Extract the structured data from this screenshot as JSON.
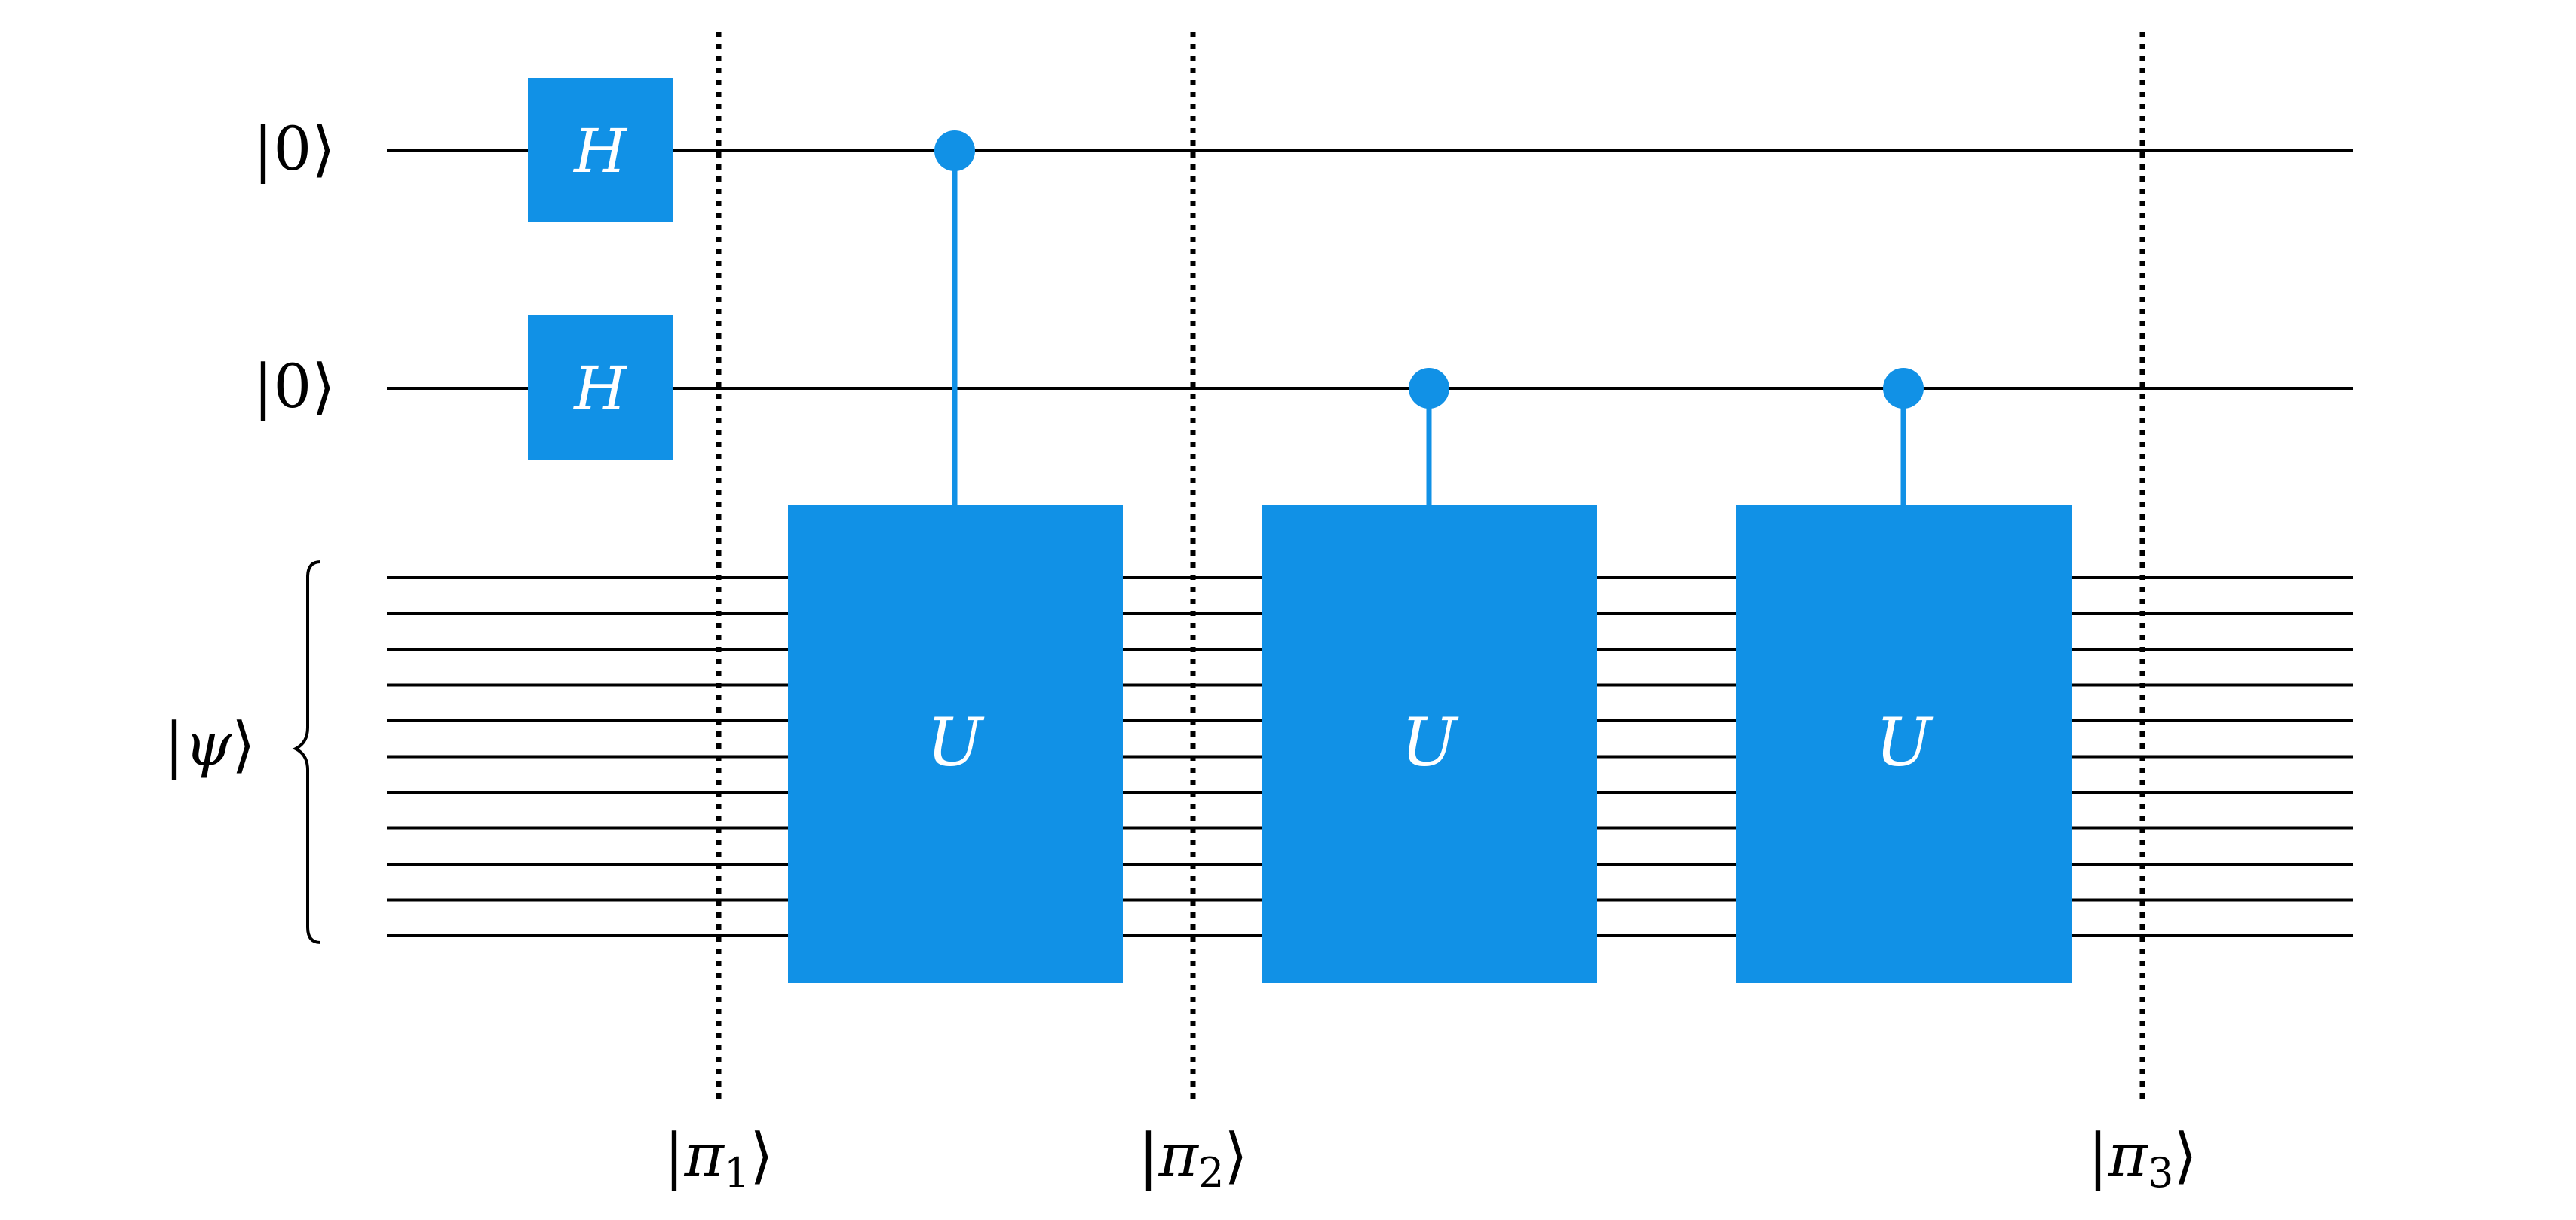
{
  "colors": {
    "gate": "#1191e6",
    "wire": "#000000",
    "gate_text": "#ffffff",
    "background": "#ffffff"
  },
  "qubits": [
    {
      "label": "|0⟩"
    },
    {
      "label": "|0⟩"
    }
  ],
  "register": {
    "label_prefix": "|",
    "label_symbol": "ψ",
    "label_suffix": "⟩",
    "wire_count": 11
  },
  "hadamard_gates": [
    {
      "label": "H",
      "qubit": 0
    },
    {
      "label": "H",
      "qubit": 1
    }
  ],
  "controlled_gates": [
    {
      "label": "U",
      "control_qubit": 0
    },
    {
      "label": "U",
      "control_qubit": 1
    },
    {
      "label": "U",
      "control_qubit": 1
    }
  ],
  "barriers": [
    {
      "label_prefix": "|",
      "symbol": "π",
      "subscript": "1",
      "label_suffix": "⟩"
    },
    {
      "label_prefix": "|",
      "symbol": "π",
      "subscript": "2",
      "label_suffix": "⟩"
    },
    {
      "label_prefix": "|",
      "symbol": "π",
      "subscript": "3",
      "label_suffix": "⟩"
    }
  ]
}
